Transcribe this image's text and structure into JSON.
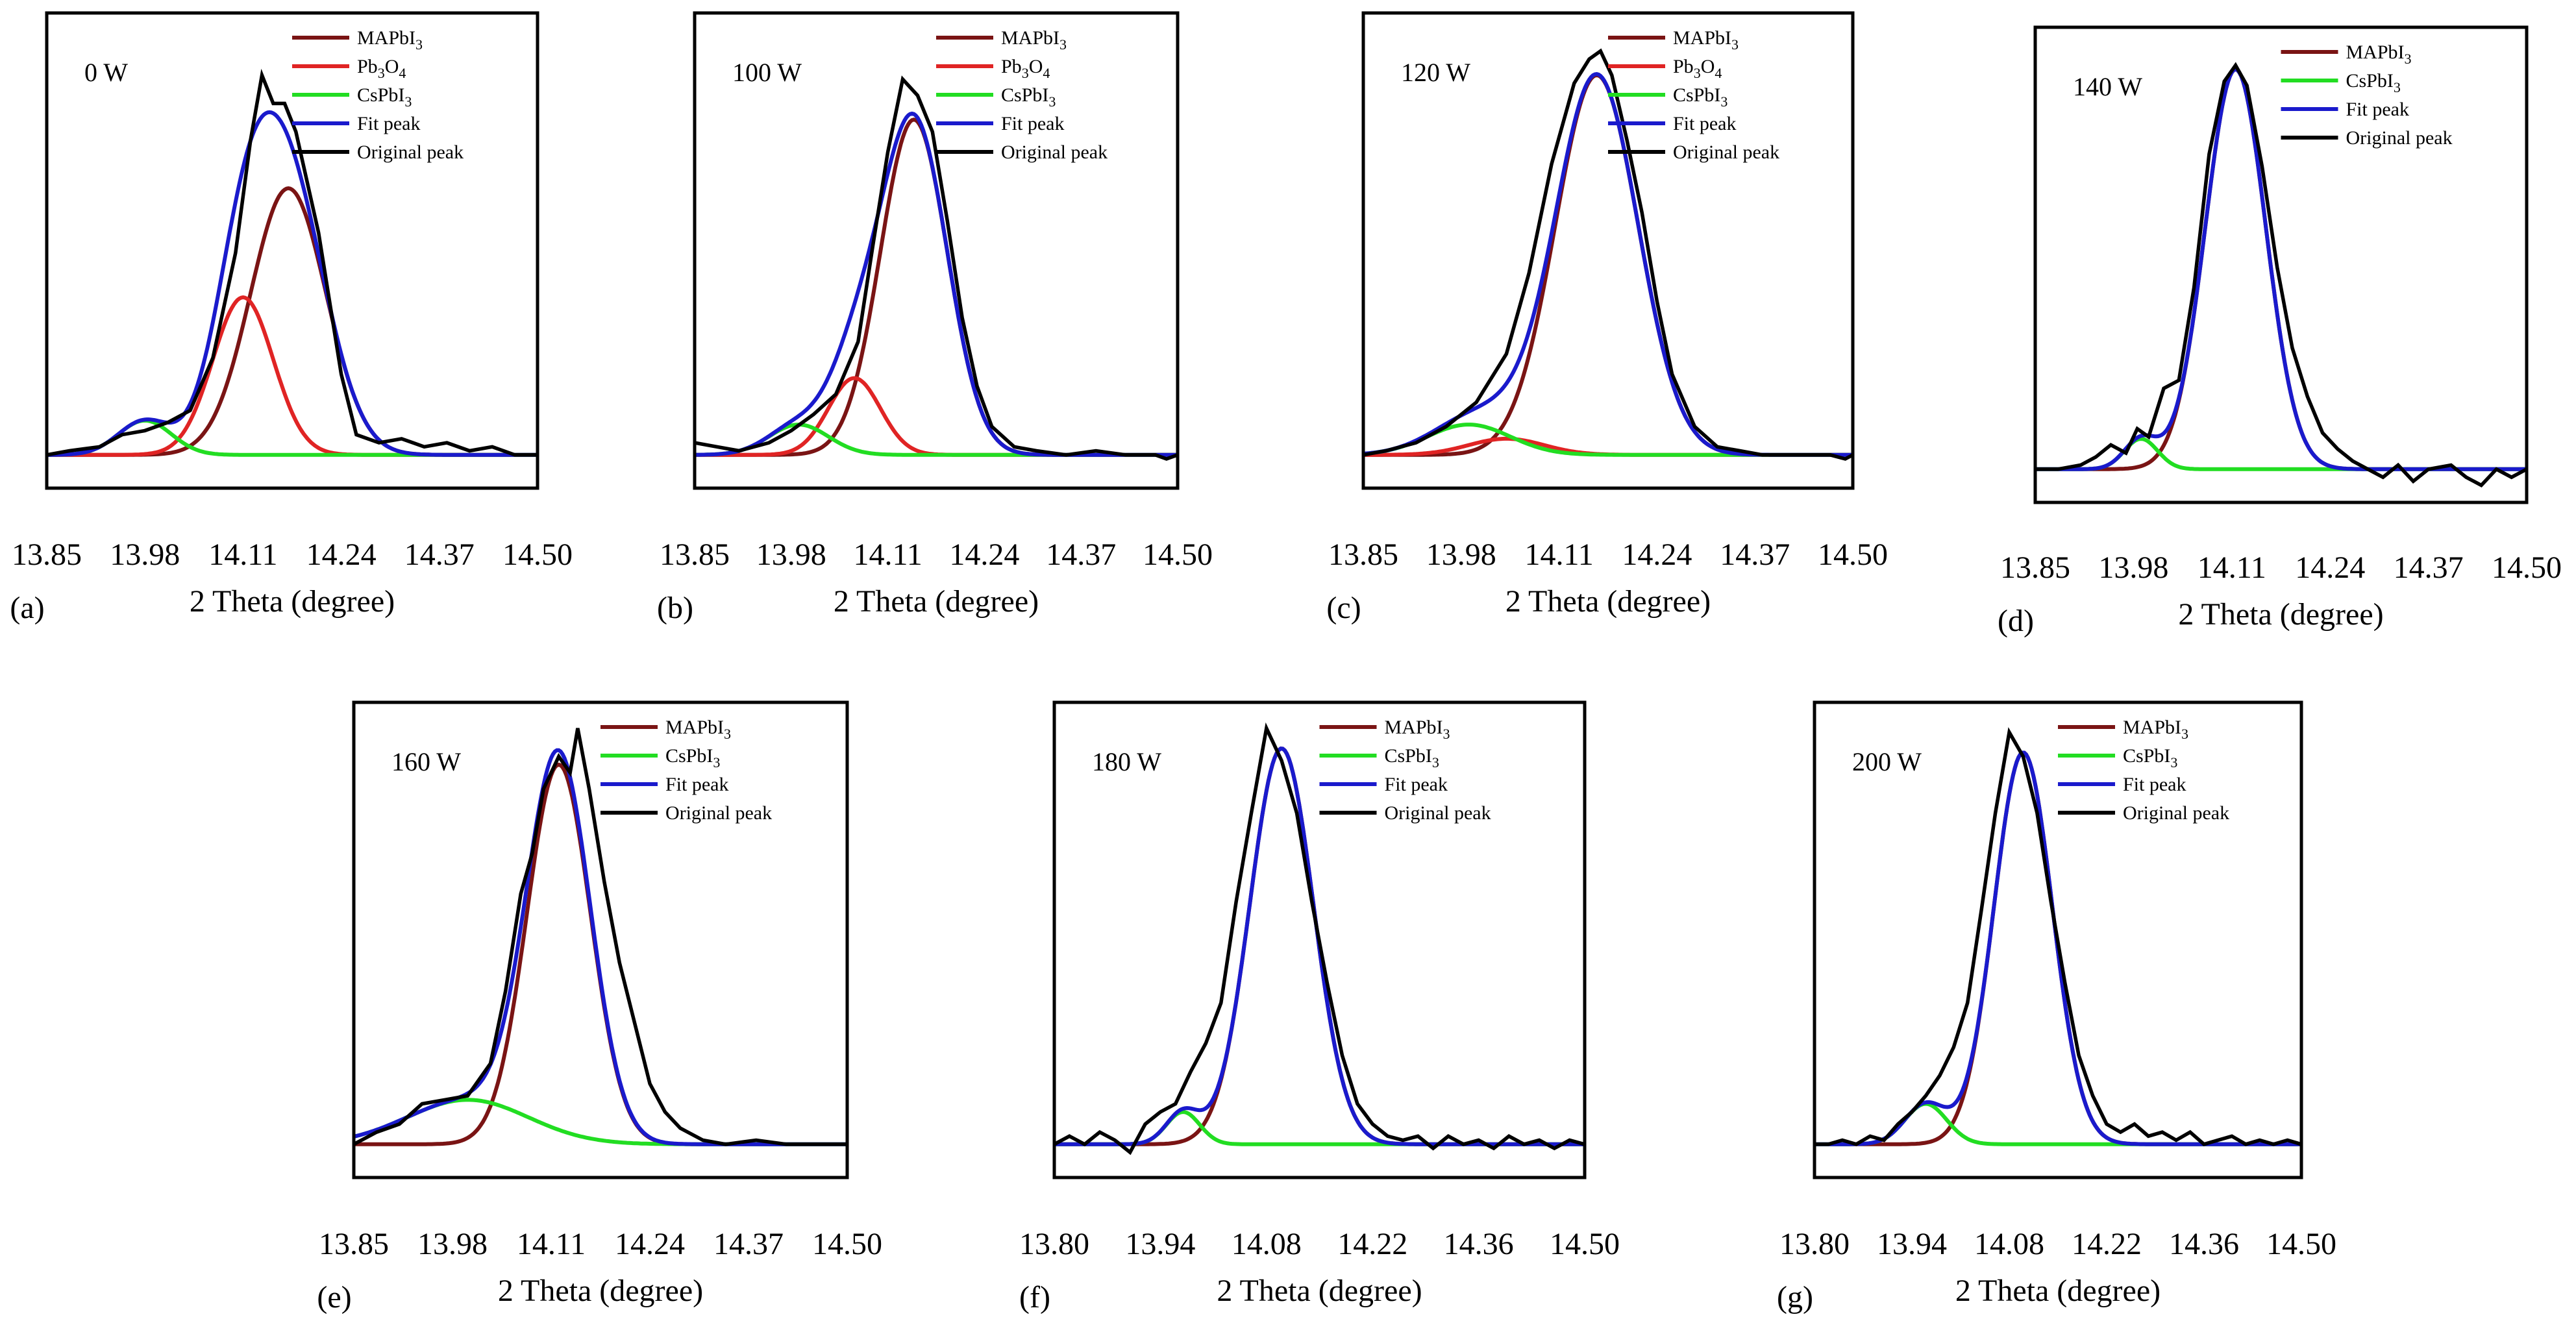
{
  "figure": {
    "xlabel": "2 Theta (degree)",
    "colors": {
      "MAPbI3": "#7a1414",
      "Pb3O4": "#e02424",
      "CsPbI3": "#22dd22",
      "fit": "#1a1acc",
      "original": "#000000",
      "axes": "#000000"
    }
  },
  "chart_data": [
    {
      "type": "line",
      "panel": "(a)",
      "title": "0 W",
      "xlabel": "2 Theta (degree)",
      "x_ticks": [
        "13.85",
        "13.98",
        "14.11",
        "14.24",
        "14.37",
        "14.50"
      ],
      "xlim": [
        13.85,
        14.5
      ],
      "ylim": [
        0,
        1.08
      ],
      "legend": [
        "MAPbI3",
        "Pb3O4",
        "CsPbI3",
        "Fit peak",
        "Original peak"
      ],
      "components": [
        {
          "name": "MAPbI3",
          "center": 14.17,
          "height": 0.66,
          "width": 0.05
        },
        {
          "name": "Pb3O4",
          "center": 14.11,
          "height": 0.39,
          "width": 0.04
        },
        {
          "name": "CsPbI3",
          "center": 13.98,
          "height": 0.085,
          "width": 0.035
        }
      ],
      "original": [
        [
          13.85,
          0.0
        ],
        [
          13.88,
          0.01
        ],
        [
          13.92,
          0.02
        ],
        [
          13.95,
          0.05
        ],
        [
          13.98,
          0.06
        ],
        [
          14.01,
          0.08
        ],
        [
          14.04,
          0.11
        ],
        [
          14.07,
          0.24
        ],
        [
          14.1,
          0.5
        ],
        [
          14.12,
          0.78
        ],
        [
          14.135,
          0.94
        ],
        [
          14.15,
          0.87
        ],
        [
          14.165,
          0.87
        ],
        [
          14.18,
          0.8
        ],
        [
          14.21,
          0.55
        ],
        [
          14.24,
          0.2
        ],
        [
          14.26,
          0.05
        ],
        [
          14.29,
          0.03
        ],
        [
          14.32,
          0.04
        ],
        [
          14.35,
          0.02
        ],
        [
          14.38,
          0.03
        ],
        [
          14.41,
          0.01
        ],
        [
          14.44,
          0.02
        ],
        [
          14.47,
          0.0
        ],
        [
          14.5,
          0.0
        ]
      ]
    },
    {
      "type": "line",
      "panel": "(b)",
      "title": "100 W",
      "xlabel": "2 Theta (degree)",
      "x_ticks": [
        "13.85",
        "13.98",
        "14.11",
        "14.24",
        "14.37",
        "14.50"
      ],
      "xlim": [
        13.85,
        14.5
      ],
      "ylim": [
        0,
        1.08
      ],
      "legend": [
        "MAPbI3",
        "Pb3O4",
        "CsPbI3",
        "Fit peak",
        "Original peak"
      ],
      "components": [
        {
          "name": "MAPbI3",
          "center": 14.145,
          "height": 0.83,
          "width": 0.045
        },
        {
          "name": "Pb3O4",
          "center": 14.065,
          "height": 0.19,
          "width": 0.035
        },
        {
          "name": "CsPbI3",
          "center": 13.99,
          "height": 0.075,
          "width": 0.04
        }
      ],
      "original": [
        [
          13.85,
          0.03
        ],
        [
          13.88,
          0.02
        ],
        [
          13.91,
          0.01
        ],
        [
          13.95,
          0.03
        ],
        [
          13.98,
          0.06
        ],
        [
          14.01,
          0.1
        ],
        [
          14.04,
          0.15
        ],
        [
          14.07,
          0.28
        ],
        [
          14.09,
          0.52
        ],
        [
          14.11,
          0.75
        ],
        [
          14.13,
          0.93
        ],
        [
          14.15,
          0.89
        ],
        [
          14.17,
          0.8
        ],
        [
          14.19,
          0.58
        ],
        [
          14.21,
          0.34
        ],
        [
          14.23,
          0.17
        ],
        [
          14.25,
          0.07
        ],
        [
          14.28,
          0.02
        ],
        [
          14.31,
          0.01
        ],
        [
          14.35,
          0.0
        ],
        [
          14.39,
          0.01
        ],
        [
          14.43,
          0.0
        ],
        [
          14.47,
          0.0
        ],
        [
          14.485,
          -0.01
        ],
        [
          14.5,
          0.0
        ]
      ]
    },
    {
      "type": "line",
      "panel": "(c)",
      "title": "120 W",
      "xlabel": "2 Theta (degree)",
      "x_ticks": [
        "13.85",
        "13.98",
        "14.11",
        "14.24",
        "14.37",
        "14.50"
      ],
      "xlim": [
        13.85,
        14.5
      ],
      "ylim": [
        0,
        1.08
      ],
      "legend": [
        "MAPbI3",
        "Pb3O4",
        "CsPbI3",
        "Fit peak",
        "Original peak"
      ],
      "components": [
        {
          "name": "MAPbI3",
          "center": 14.16,
          "height": 0.94,
          "width": 0.055
        },
        {
          "name": "Pb3O4",
          "center": 14.04,
          "height": 0.04,
          "width": 0.05
        },
        {
          "name": "CsPbI3",
          "center": 13.99,
          "height": 0.075,
          "width": 0.055
        }
      ],
      "original": [
        [
          13.85,
          0.0
        ],
        [
          13.88,
          0.01
        ],
        [
          13.92,
          0.03
        ],
        [
          13.96,
          0.07
        ],
        [
          14.0,
          0.13
        ],
        [
          14.04,
          0.25
        ],
        [
          14.07,
          0.45
        ],
        [
          14.1,
          0.72
        ],
        [
          14.13,
          0.92
        ],
        [
          14.15,
          0.98
        ],
        [
          14.165,
          1.0
        ],
        [
          14.18,
          0.94
        ],
        [
          14.2,
          0.78
        ],
        [
          14.22,
          0.6
        ],
        [
          14.24,
          0.38
        ],
        [
          14.26,
          0.2
        ],
        [
          14.29,
          0.07
        ],
        [
          14.32,
          0.02
        ],
        [
          14.35,
          0.01
        ],
        [
          14.38,
          0.0
        ],
        [
          14.41,
          0.0
        ],
        [
          14.44,
          0.0
        ],
        [
          14.47,
          0.0
        ],
        [
          14.49,
          -0.01
        ],
        [
          14.5,
          0.0
        ]
      ]
    },
    {
      "type": "line",
      "panel": "(d)",
      "title": "140 W",
      "xlabel": "2 Theta (degree)",
      "x_ticks": [
        "13.85",
        "13.98",
        "14.11",
        "14.24",
        "14.37",
        "14.50"
      ],
      "xlim": [
        13.85,
        14.5
      ],
      "ylim": [
        -0.06,
        1.05
      ],
      "legend": [
        "MAPbI3",
        "CsPbI3",
        "Fit peak",
        "Original peak"
      ],
      "components": [
        {
          "name": "MAPbI3",
          "center": 14.115,
          "height": 0.99,
          "width": 0.04
        },
        {
          "name": "CsPbI3",
          "center": 13.99,
          "height": 0.075,
          "width": 0.022
        }
      ],
      "original": [
        [
          13.85,
          0.0
        ],
        [
          13.88,
          0.0
        ],
        [
          13.91,
          0.01
        ],
        [
          13.93,
          0.03
        ],
        [
          13.95,
          0.06
        ],
        [
          13.97,
          0.04
        ],
        [
          13.985,
          0.1
        ],
        [
          14.0,
          0.08
        ],
        [
          14.02,
          0.2
        ],
        [
          14.04,
          0.22
        ],
        [
          14.06,
          0.45
        ],
        [
          14.08,
          0.78
        ],
        [
          14.1,
          0.96
        ],
        [
          14.115,
          1.0
        ],
        [
          14.13,
          0.95
        ],
        [
          14.15,
          0.75
        ],
        [
          14.17,
          0.5
        ],
        [
          14.19,
          0.3
        ],
        [
          14.21,
          0.18
        ],
        [
          14.23,
          0.09
        ],
        [
          14.25,
          0.05
        ],
        [
          14.27,
          0.02
        ],
        [
          14.29,
          0.0
        ],
        [
          14.31,
          -0.02
        ],
        [
          14.33,
          0.01
        ],
        [
          14.35,
          -0.03
        ],
        [
          14.37,
          0.0
        ],
        [
          14.4,
          0.01
        ],
        [
          14.42,
          -0.02
        ],
        [
          14.44,
          -0.04
        ],
        [
          14.46,
          0.0
        ],
        [
          14.48,
          -0.02
        ],
        [
          14.5,
          0.0
        ]
      ]
    },
    {
      "type": "line",
      "panel": "(e)",
      "title": "160 W",
      "xlabel": "2 Theta (degree)",
      "x_ticks": [
        "13.85",
        "13.98",
        "14.11",
        "14.24",
        "14.37",
        "14.50"
      ],
      "xlim": [
        13.85,
        14.5
      ],
      "ylim": [
        -0.02,
        1.05
      ],
      "legend": [
        "MAPbI3",
        "CsPbI3",
        "Fit peak",
        "Original peak"
      ],
      "components": [
        {
          "name": "MAPbI3",
          "center": 14.12,
          "height": 0.94,
          "width": 0.042
        },
        {
          "name": "CsPbI3",
          "center": 14.0,
          "height": 0.11,
          "width": 0.08
        }
      ],
      "original": [
        [
          13.85,
          0.0
        ],
        [
          13.88,
          0.03
        ],
        [
          13.91,
          0.05
        ],
        [
          13.94,
          0.1
        ],
        [
          13.97,
          0.11
        ],
        [
          14.0,
          0.12
        ],
        [
          14.03,
          0.2
        ],
        [
          14.05,
          0.38
        ],
        [
          14.07,
          0.62
        ],
        [
          14.085,
          0.72
        ],
        [
          14.1,
          0.88
        ],
        [
          14.12,
          0.96
        ],
        [
          14.135,
          0.92
        ],
        [
          14.145,
          1.03
        ],
        [
          14.16,
          0.88
        ],
        [
          14.18,
          0.65
        ],
        [
          14.2,
          0.45
        ],
        [
          14.22,
          0.3
        ],
        [
          14.24,
          0.15
        ],
        [
          14.26,
          0.08
        ],
        [
          14.28,
          0.04
        ],
        [
          14.31,
          0.01
        ],
        [
          14.34,
          0.0
        ],
        [
          14.38,
          0.01
        ],
        [
          14.42,
          0.0
        ],
        [
          14.46,
          0.0
        ],
        [
          14.5,
          0.0
        ]
      ]
    },
    {
      "type": "line",
      "panel": "(f)",
      "title": "180 W",
      "xlabel": "2 Theta (degree)",
      "x_ticks": [
        "13.80",
        "13.94",
        "14.08",
        "14.22",
        "14.36",
        "14.50"
      ],
      "xlim": [
        13.8,
        14.5
      ],
      "ylim": [
        -0.04,
        1.05
      ],
      "legend": [
        "MAPbI3",
        "CsPbI3",
        "Fit peak",
        "Original peak"
      ],
      "components": [
        {
          "name": "MAPbI3",
          "center": 14.1,
          "height": 0.98,
          "width": 0.042
        },
        {
          "name": "CsPbI3",
          "center": 13.97,
          "height": 0.08,
          "width": 0.022
        }
      ],
      "original": [
        [
          13.8,
          0.0
        ],
        [
          13.82,
          0.02
        ],
        [
          13.84,
          0.0
        ],
        [
          13.86,
          0.03
        ],
        [
          13.88,
          0.01
        ],
        [
          13.9,
          -0.02
        ],
        [
          13.92,
          0.05
        ],
        [
          13.94,
          0.08
        ],
        [
          13.96,
          0.1
        ],
        [
          13.98,
          0.18
        ],
        [
          14.0,
          0.25
        ],
        [
          14.02,
          0.35
        ],
        [
          14.04,
          0.6
        ],
        [
          14.06,
          0.82
        ],
        [
          14.08,
          1.03
        ],
        [
          14.1,
          0.95
        ],
        [
          14.12,
          0.82
        ],
        [
          14.14,
          0.6
        ],
        [
          14.16,
          0.4
        ],
        [
          14.18,
          0.22
        ],
        [
          14.2,
          0.1
        ],
        [
          14.22,
          0.05
        ],
        [
          14.24,
          0.02
        ],
        [
          14.26,
          0.01
        ],
        [
          14.28,
          0.02
        ],
        [
          14.3,
          -0.01
        ],
        [
          14.32,
          0.02
        ],
        [
          14.34,
          0.0
        ],
        [
          14.36,
          0.01
        ],
        [
          14.38,
          -0.01
        ],
        [
          14.4,
          0.02
        ],
        [
          14.42,
          0.0
        ],
        [
          14.44,
          0.01
        ],
        [
          14.46,
          -0.01
        ],
        [
          14.48,
          0.01
        ],
        [
          14.5,
          0.0
        ]
      ]
    },
    {
      "type": "line",
      "panel": "(g)",
      "title": "200 W",
      "xlabel": "2 Theta (degree)",
      "x_ticks": [
        "13.80",
        "13.94",
        "14.08",
        "14.22",
        "14.36",
        "14.50"
      ],
      "xlim": [
        13.8,
        14.5
      ],
      "ylim": [
        -0.03,
        1.05
      ],
      "legend": [
        "MAPbI3",
        "CsPbI3",
        "Fit peak",
        "Original peak"
      ],
      "components": [
        {
          "name": "MAPbI3",
          "center": 14.1,
          "height": 0.97,
          "width": 0.042
        },
        {
          "name": "CsPbI3",
          "center": 13.96,
          "height": 0.1,
          "width": 0.03
        }
      ],
      "original": [
        [
          13.8,
          0.0
        ],
        [
          13.82,
          0.0
        ],
        [
          13.84,
          0.01
        ],
        [
          13.86,
          0.0
        ],
        [
          13.88,
          0.02
        ],
        [
          13.9,
          0.01
        ],
        [
          13.92,
          0.05
        ],
        [
          13.94,
          0.08
        ],
        [
          13.96,
          0.12
        ],
        [
          13.98,
          0.17
        ],
        [
          14.0,
          0.24
        ],
        [
          14.02,
          0.35
        ],
        [
          14.04,
          0.58
        ],
        [
          14.06,
          0.82
        ],
        [
          14.08,
          1.02
        ],
        [
          14.1,
          0.96
        ],
        [
          14.12,
          0.82
        ],
        [
          14.14,
          0.6
        ],
        [
          14.16,
          0.4
        ],
        [
          14.18,
          0.22
        ],
        [
          14.2,
          0.12
        ],
        [
          14.22,
          0.05
        ],
        [
          14.24,
          0.03
        ],
        [
          14.26,
          0.05
        ],
        [
          14.28,
          0.02
        ],
        [
          14.3,
          0.03
        ],
        [
          14.32,
          0.01
        ],
        [
          14.34,
          0.03
        ],
        [
          14.36,
          0.0
        ],
        [
          14.38,
          0.01
        ],
        [
          14.4,
          0.02
        ],
        [
          14.42,
          0.0
        ],
        [
          14.44,
          0.01
        ],
        [
          14.46,
          0.0
        ],
        [
          14.48,
          0.01
        ],
        [
          14.5,
          0.0
        ]
      ]
    }
  ]
}
